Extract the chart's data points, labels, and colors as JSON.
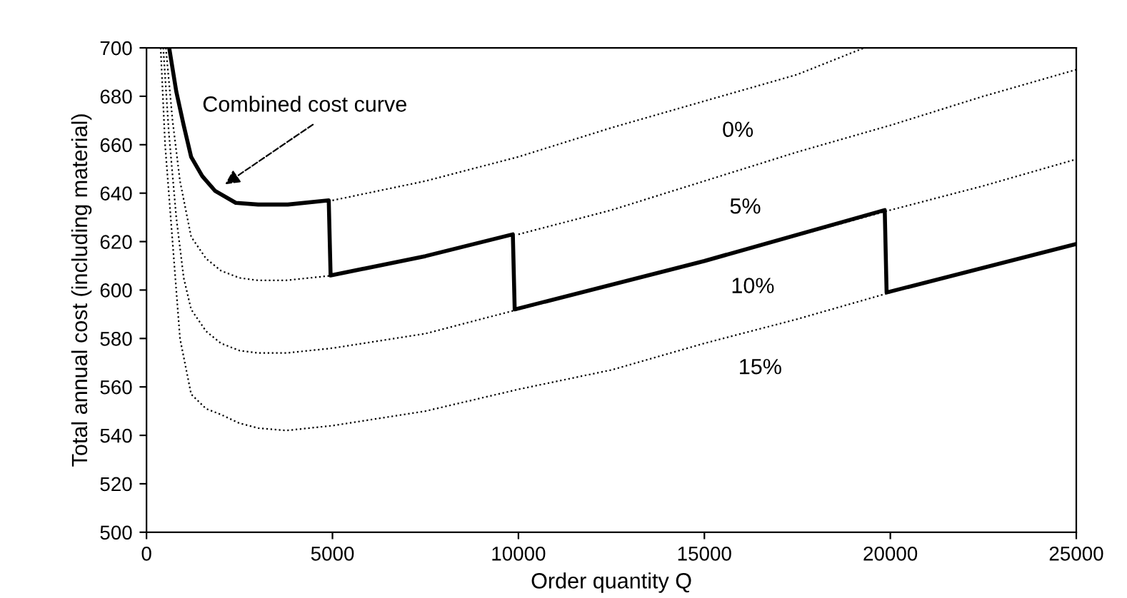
{
  "chart_data": {
    "type": "line",
    "xlabel": "Order quantity Q",
    "ylabel": "Total annual cost (including material)",
    "xlim": [
      0,
      25000
    ],
    "xticks": [
      0,
      5000,
      10000,
      15000,
      20000,
      25000
    ],
    "ylim": [
      500,
      700
    ],
    "yticks": [
      500,
      520,
      540,
      560,
      580,
      600,
      620,
      640,
      660,
      680,
      700
    ],
    "grid": false,
    "legend": false,
    "series": [
      {
        "color": "#000000",
        "line_style": "solid",
        "x": [
          610,
          800,
          1000,
          1200,
          1500,
          1840,
          2400,
          3000,
          3800,
          4900,
          4950,
          7500,
          9850,
          9900,
          15000,
          19850,
          19900,
          25000
        ],
        "values": [
          700,
          682,
          668,
          655,
          647,
          641,
          636,
          635.3,
          635.3,
          637,
          606,
          614,
          623,
          592,
          612,
          633,
          599,
          619
        ]
      },
      {
        "name": "0%",
        "color": "#000000",
        "line_style": "dotted",
        "x": [
          5000,
          7500,
          10000,
          12500,
          15000,
          17500,
          19300
        ],
        "values": [
          637,
          645,
          655,
          667,
          678,
          689,
          700
        ]
      },
      {
        "name": "5%",
        "color": "#000000",
        "line_style": "dotted",
        "x": [
          520,
          700,
          900,
          1200,
          1600,
          2000,
          2500,
          3000,
          3760,
          5000,
          7500,
          10000,
          12500,
          15000,
          17500,
          20000,
          22500,
          25000
        ],
        "values": [
          700,
          670,
          645,
          622,
          613,
          608,
          605,
          604,
          604,
          606,
          null,
          623,
          633,
          645,
          657,
          668,
          680,
          691
        ]
      },
      {
        "name": "10%",
        "color": "#000000",
        "line_style": "dotted",
        "x": [
          450,
          600,
          800,
          1000,
          1200,
          1600,
          2000,
          2500,
          3000,
          3760,
          5000,
          7500,
          10000,
          15000,
          20000,
          22500,
          25000
        ],
        "values": [
          700,
          665,
          630,
          605,
          592,
          583,
          578,
          575,
          574,
          574,
          576,
          582,
          592,
          612,
          633,
          643,
          654
        ]
      },
      {
        "name": "15%",
        "color": "#000000",
        "line_style": "dotted",
        "x": [
          380,
          500,
          700,
          900,
          1200,
          1600,
          2000,
          2500,
          3000,
          3760,
          5000,
          7500,
          10000,
          12500,
          15000,
          17500,
          20000
        ],
        "values": [
          700,
          660,
          620,
          580,
          557,
          551,
          548.6,
          545,
          543,
          542,
          544,
          550,
          559,
          567,
          578,
          588,
          599
        ]
      }
    ],
    "annotations": [
      "Combined cost curve"
    ]
  }
}
